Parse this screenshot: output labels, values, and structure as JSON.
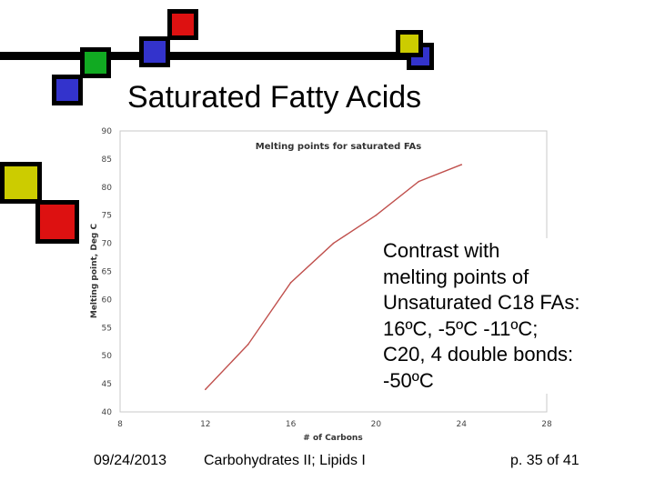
{
  "slide": {
    "title": "Saturated Fatty Acids",
    "note_lines": [
      "Contrast with",
      "melting points of",
      "Unsaturated C18 FAs:",
      "16ºC, -5ºC -11ºC;",
      "C20, 4 double bonds:",
      "-50ºC"
    ],
    "footer": {
      "date": "09/24/2013",
      "course": "Carbohydrates II; Lipids I",
      "page": "p. 35 of 41"
    }
  },
  "decor_colors": {
    "red": "#dd1111",
    "blue": "#3333cc",
    "green": "#11aa22",
    "yellow": "#cccc00"
  },
  "chart_data": {
    "type": "line",
    "title": "Melting points for saturated FAs",
    "xlabel": "# of Carbons",
    "ylabel": "Melting point, Deg C",
    "xlim": [
      8,
      28
    ],
    "ylim": [
      40,
      90
    ],
    "x_ticks": [
      8,
      12,
      16,
      20,
      24,
      28
    ],
    "y_ticks": [
      40,
      45,
      50,
      55,
      60,
      65,
      70,
      75,
      80,
      85,
      90
    ],
    "grid": false,
    "line_color": "#c0504d",
    "series": [
      {
        "x": [
          12,
          14,
          16,
          18,
          20,
          22,
          24
        ],
        "y": [
          44,
          52,
          63,
          70,
          75,
          81,
          84
        ]
      }
    ]
  }
}
